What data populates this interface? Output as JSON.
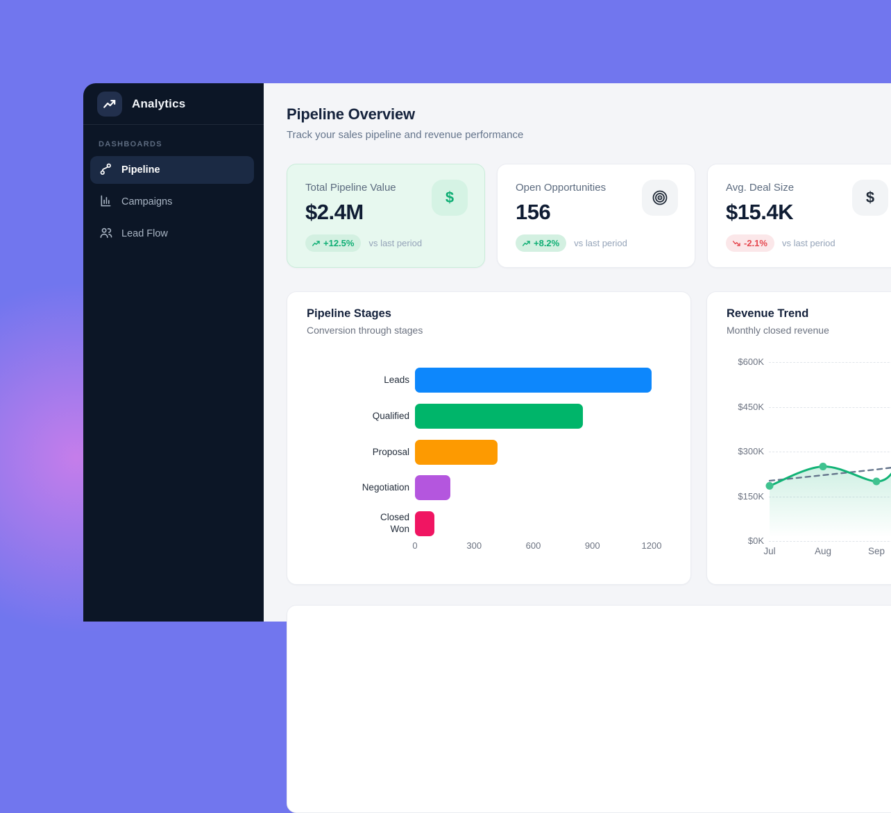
{
  "app": {
    "name": "Analytics"
  },
  "sidebar": {
    "section_label": "DASHBOARDS",
    "items": [
      {
        "label": "Pipeline",
        "icon": "pipeline-branch-icon",
        "active": true
      },
      {
        "label": "Campaigns",
        "icon": "bar-chart-icon",
        "active": false
      },
      {
        "label": "Lead Flow",
        "icon": "users-icon",
        "active": false
      }
    ]
  },
  "header": {
    "title": "Pipeline Overview",
    "subtitle": "Track your sales pipeline and revenue performance"
  },
  "kpis": [
    {
      "label": "Total Pipeline Value",
      "value": "$2.4M",
      "delta": "+12.5%",
      "delta_direction": "up",
      "compare_label": "vs last period",
      "icon": "dollar-icon",
      "highlighted": true
    },
    {
      "label": "Open Opportunities",
      "value": "156",
      "delta": "+8.2%",
      "delta_direction": "up",
      "compare_label": "vs last period",
      "icon": "target-icon",
      "highlighted": false
    },
    {
      "label": "Avg. Deal Size",
      "value": "$15.4K",
      "delta": "-2.1%",
      "delta_direction": "down",
      "compare_label": "vs last period",
      "icon": "dollar-icon",
      "highlighted": false
    }
  ],
  "colors": {
    "background_purple": "#7176ee",
    "background_blob_pink": "#ce7eea",
    "sidebar_bg": "#0c1626",
    "sidebar_active_bg": "#1b2a44",
    "content_bg": "#f4f5f8",
    "positive_green": "#0fae74",
    "negative_red": "#e5484f",
    "line_green": "#12b376",
    "trend_dash_gray": "#64748b"
  },
  "chart_data": [
    {
      "type": "bar",
      "title": "Pipeline Stages",
      "subtitle": "Conversion through stages",
      "orientation": "horizontal",
      "categories": [
        "Leads",
        "Qualified",
        "Proposal",
        "Negotiation",
        "Closed Won"
      ],
      "values": [
        1200,
        850,
        420,
        180,
        100
      ],
      "bar_colors": [
        "#0d87fc",
        "#00b56a",
        "#fd9a01",
        "#b456de",
        "#f01562"
      ],
      "xlim": [
        0,
        1200
      ],
      "xticks": [
        0,
        300,
        600,
        900,
        1200
      ],
      "grid": false
    },
    {
      "type": "line",
      "title": "Revenue Trend",
      "subtitle": "Monthly closed revenue",
      "x": [
        "Jul",
        "Aug",
        "Sep"
      ],
      "series": [
        {
          "name": "revenue",
          "style": "smooth-area",
          "color": "#12b376",
          "values_k": [
            185,
            250,
            200
          ],
          "value_at_right_edge_k": 243
        },
        {
          "name": "trend",
          "style": "dashed",
          "color": "#64748b",
          "values_k": [
            202,
            221,
            240
          ],
          "value_at_right_edge_k": 248
        }
      ],
      "ylim_k": [
        0,
        600
      ],
      "yticks": [
        {
          "label": "$0K",
          "value_k": 0
        },
        {
          "label": "$150K",
          "value_k": 150
        },
        {
          "label": "$300K",
          "value_k": 300
        },
        {
          "label": "$450K",
          "value_k": 450
        },
        {
          "label": "$600K",
          "value_k": 600
        }
      ],
      "grid": "dashed-horizontal",
      "legend": "none",
      "note": "chart clipped at right viewport edge"
    }
  ]
}
